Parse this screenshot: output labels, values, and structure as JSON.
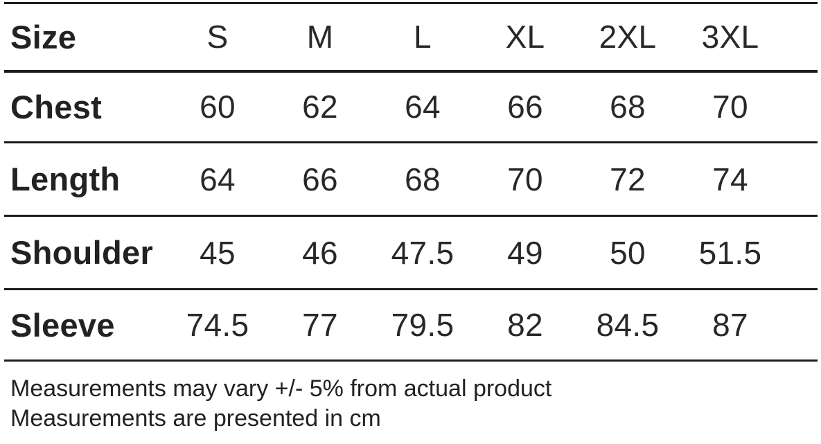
{
  "chart_data": {
    "type": "table",
    "columns": [
      "Size",
      "S",
      "M",
      "L",
      "XL",
      "2XL",
      "3XL"
    ],
    "rows": [
      {
        "label": "Chest",
        "values": [
          60,
          62,
          64,
          66,
          68,
          70
        ]
      },
      {
        "label": "Length",
        "values": [
          64,
          66,
          68,
          70,
          72,
          74
        ]
      },
      {
        "label": "Shoulder",
        "values": [
          45,
          46,
          47.5,
          49,
          50,
          51.5
        ]
      },
      {
        "label": "Sleeve",
        "values": [
          74.5,
          77,
          79.5,
          82,
          84.5,
          87
        ]
      }
    ],
    "unit": "cm",
    "notes": [
      "Measurements may vary +/- 5% from actual product",
      "Measurements are presented in cm"
    ]
  },
  "colors": {
    "text": "#242122",
    "rule": "#1d1a1b",
    "background": "#ffffff"
  }
}
